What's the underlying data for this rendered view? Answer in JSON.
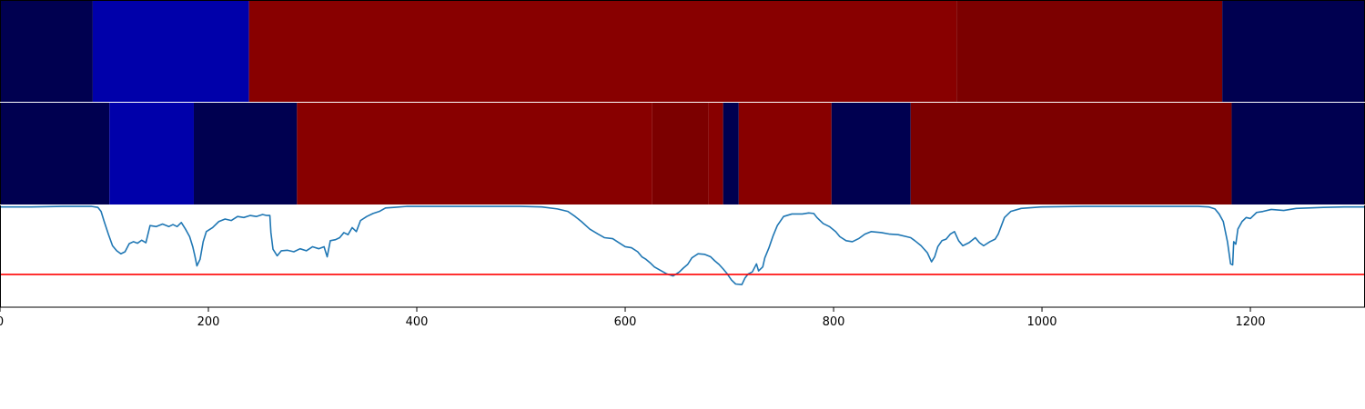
{
  "chart_data": [
    {
      "type": "heatmap",
      "segments": [
        {
          "start": 0,
          "end": 89,
          "color": "#000050"
        },
        {
          "start": 89,
          "end": 239,
          "color": "#0000aa"
        },
        {
          "start": 239,
          "end": 918,
          "color": "#880000"
        },
        {
          "start": 918,
          "end": 1173,
          "color": "#7c0000"
        },
        {
          "start": 1173,
          "end": 1310,
          "color": "#000050"
        }
      ]
    },
    {
      "type": "heatmap",
      "segments": [
        {
          "start": 0,
          "end": 105,
          "color": "#000050"
        },
        {
          "start": 105,
          "end": 186,
          "color": "#0000aa"
        },
        {
          "start": 186,
          "end": 285,
          "color": "#000050"
        },
        {
          "start": 285,
          "end": 626,
          "color": "#880000"
        },
        {
          "start": 626,
          "end": 680,
          "color": "#7c0000"
        },
        {
          "start": 680,
          "end": 694,
          "color": "#880000"
        },
        {
          "start": 694,
          "end": 709,
          "color": "#000050"
        },
        {
          "start": 709,
          "end": 798,
          "color": "#880000"
        },
        {
          "start": 798,
          "end": 874,
          "color": "#000050"
        },
        {
          "start": 874,
          "end": 1182,
          "color": "#7c0000"
        },
        {
          "start": 1182,
          "end": 1310,
          "color": "#000050"
        }
      ]
    },
    {
      "type": "line",
      "xlim": [
        0,
        1310
      ],
      "ylim": [
        -1.0,
        1.02
      ],
      "xticks": [
        "0",
        "200",
        "400",
        "600",
        "800",
        "1000",
        "1200"
      ],
      "tick_values": [
        0,
        200,
        400,
        600,
        800,
        1000,
        1200
      ],
      "threshold": {
        "y": -0.35,
        "color": "#ff0000"
      },
      "series": [
        {
          "color": "#1f77b4",
          "points": [
            [
              0,
              0.99
            ],
            [
              30,
              0.99
            ],
            [
              60,
              1.0
            ],
            [
              88,
              1.0
            ],
            [
              94,
              0.98
            ],
            [
              97,
              0.9
            ],
            [
              100,
              0.7
            ],
            [
              104,
              0.45
            ],
            [
              108,
              0.22
            ],
            [
              112,
              0.12
            ],
            [
              116,
              0.06
            ],
            [
              120,
              0.1
            ],
            [
              124,
              0.26
            ],
            [
              128,
              0.3
            ],
            [
              132,
              0.27
            ],
            [
              136,
              0.33
            ],
            [
              140,
              0.28
            ],
            [
              144,
              0.62
            ],
            [
              150,
              0.6
            ],
            [
              156,
              0.65
            ],
            [
              162,
              0.6
            ],
            [
              166,
              0.64
            ],
            [
              170,
              0.6
            ],
            [
              174,
              0.68
            ],
            [
              178,
              0.55
            ],
            [
              182,
              0.4
            ],
            [
              185,
              0.2
            ],
            [
              187,
              0.02
            ],
            [
              189,
              -0.18
            ],
            [
              192,
              -0.05
            ],
            [
              195,
              0.3
            ],
            [
              198,
              0.5
            ],
            [
              204,
              0.58
            ],
            [
              210,
              0.7
            ],
            [
              216,
              0.75
            ],
            [
              222,
              0.72
            ],
            [
              228,
              0.8
            ],
            [
              234,
              0.78
            ],
            [
              240,
              0.82
            ],
            [
              246,
              0.8
            ],
            [
              252,
              0.84
            ],
            [
              256,
              0.82
            ],
            [
              259,
              0.82
            ],
            [
              260,
              0.48
            ],
            [
              262,
              0.15
            ],
            [
              266,
              0.02
            ],
            [
              270,
              0.12
            ],
            [
              276,
              0.13
            ],
            [
              282,
              0.1
            ],
            [
              288,
              0.16
            ],
            [
              294,
              0.12
            ],
            [
              300,
              0.2
            ],
            [
              306,
              0.16
            ],
            [
              311,
              0.2
            ],
            [
              314,
              0.0
            ],
            [
              317,
              0.32
            ],
            [
              322,
              0.34
            ],
            [
              326,
              0.38
            ],
            [
              330,
              0.48
            ],
            [
              334,
              0.44
            ],
            [
              338,
              0.58
            ],
            [
              342,
              0.5
            ],
            [
              346,
              0.72
            ],
            [
              352,
              0.8
            ],
            [
              358,
              0.86
            ],
            [
              364,
              0.9
            ],
            [
              370,
              0.97
            ],
            [
              378,
              0.98
            ],
            [
              390,
              1.0
            ],
            [
              420,
              1.0
            ],
            [
              460,
              1.0
            ],
            [
              500,
              1.0
            ],
            [
              520,
              0.99
            ],
            [
              535,
              0.95
            ],
            [
              545,
              0.9
            ],
            [
              552,
              0.8
            ],
            [
              558,
              0.7
            ],
            [
              566,
              0.55
            ],
            [
              574,
              0.45
            ],
            [
              580,
              0.38
            ],
            [
              588,
              0.36
            ],
            [
              594,
              0.28
            ],
            [
              600,
              0.2
            ],
            [
              606,
              0.18
            ],
            [
              612,
              0.1
            ],
            [
              616,
              0.0
            ],
            [
              620,
              -0.05
            ],
            [
              624,
              -0.12
            ],
            [
              628,
              -0.2
            ],
            [
              633,
              -0.26
            ],
            [
              640,
              -0.34
            ],
            [
              646,
              -0.38
            ],
            [
              652,
              -0.3
            ],
            [
              656,
              -0.22
            ],
            [
              660,
              -0.15
            ],
            [
              664,
              -0.02
            ],
            [
              670,
              0.06
            ],
            [
              676,
              0.05
            ],
            [
              682,
              0.0
            ],
            [
              686,
              -0.08
            ],
            [
              690,
              -0.15
            ],
            [
              694,
              -0.24
            ],
            [
              698,
              -0.34
            ],
            [
              702,
              -0.46
            ],
            [
              706,
              -0.54
            ],
            [
              712,
              -0.55
            ],
            [
              715,
              -0.42
            ],
            [
              718,
              -0.34
            ],
            [
              722,
              -0.3
            ],
            [
              726,
              -0.14
            ],
            [
              728,
              -0.28
            ],
            [
              732,
              -0.2
            ],
            [
              734,
              -0.02
            ],
            [
              738,
              0.18
            ],
            [
              742,
              0.42
            ],
            [
              746,
              0.62
            ],
            [
              752,
              0.8
            ],
            [
              760,
              0.85
            ],
            [
              770,
              0.85
            ],
            [
              776,
              0.87
            ],
            [
              781,
              0.86
            ],
            [
              784,
              0.78
            ],
            [
              790,
              0.66
            ],
            [
              796,
              0.6
            ],
            [
              802,
              0.5
            ],
            [
              806,
              0.4
            ],
            [
              812,
              0.32
            ],
            [
              818,
              0.3
            ],
            [
              824,
              0.36
            ],
            [
              830,
              0.45
            ],
            [
              836,
              0.5
            ],
            [
              846,
              0.48
            ],
            [
              854,
              0.45
            ],
            [
              862,
              0.44
            ],
            [
              870,
              0.4
            ],
            [
              874,
              0.38
            ],
            [
              878,
              0.32
            ],
            [
              884,
              0.22
            ],
            [
              890,
              0.08
            ],
            [
              894,
              -0.1
            ],
            [
              897,
              0.0
            ],
            [
              900,
              0.2
            ],
            [
              904,
              0.32
            ],
            [
              908,
              0.35
            ],
            [
              912,
              0.45
            ],
            [
              916,
              0.5
            ],
            [
              920,
              0.32
            ],
            [
              924,
              0.22
            ],
            [
              930,
              0.28
            ],
            [
              936,
              0.38
            ],
            [
              940,
              0.28
            ],
            [
              944,
              0.22
            ],
            [
              950,
              0.3
            ],
            [
              955,
              0.35
            ],
            [
              958,
              0.45
            ],
            [
              964,
              0.78
            ],
            [
              970,
              0.9
            ],
            [
              980,
              0.96
            ],
            [
              1000,
              0.99
            ],
            [
              1040,
              1.0
            ],
            [
              1100,
              1.0
            ],
            [
              1150,
              1.0
            ],
            [
              1160,
              0.99
            ],
            [
              1166,
              0.95
            ],
            [
              1170,
              0.85
            ],
            [
              1174,
              0.7
            ],
            [
              1178,
              0.3
            ],
            [
              1181,
              -0.14
            ],
            [
              1183,
              -0.16
            ],
            [
              1184,
              0.3
            ],
            [
              1186,
              0.25
            ],
            [
              1188,
              0.55
            ],
            [
              1192,
              0.7
            ],
            [
              1196,
              0.78
            ],
            [
              1200,
              0.76
            ],
            [
              1206,
              0.88
            ],
            [
              1212,
              0.9
            ],
            [
              1220,
              0.94
            ],
            [
              1232,
              0.92
            ],
            [
              1244,
              0.96
            ],
            [
              1256,
              0.97
            ],
            [
              1270,
              0.98
            ],
            [
              1290,
              0.99
            ],
            [
              1310,
              0.99
            ]
          ]
        }
      ]
    }
  ]
}
